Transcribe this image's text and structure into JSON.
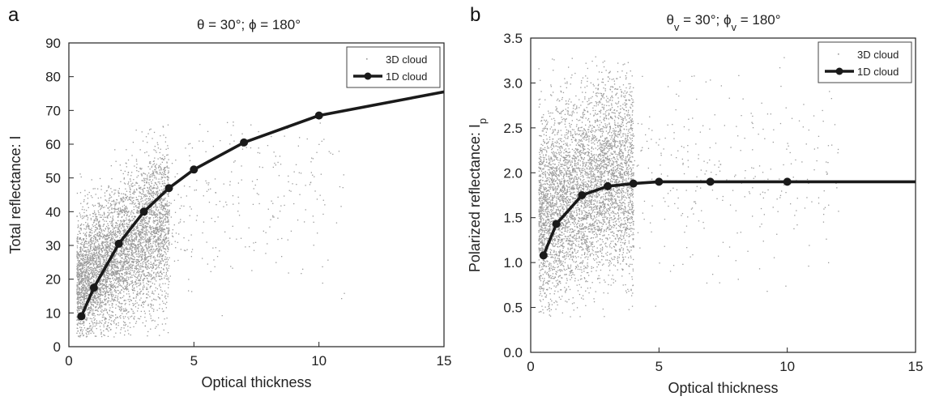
{
  "chart_data": [
    {
      "type": "scatter",
      "panel_label": "a",
      "title_parts": [
        {
          "t": "θ = 30°; ϕ = 180°"
        }
      ],
      "xlabel": "Optical thickness",
      "ylabel_parts": [
        {
          "t": "Total reflectance: I"
        }
      ],
      "xlim": [
        0,
        15
      ],
      "ylim": [
        0,
        90
      ],
      "xticks": [
        0,
        5,
        10,
        15
      ],
      "yticks": [
        0,
        10,
        20,
        30,
        40,
        50,
        60,
        70,
        80,
        90
      ],
      "grid": false,
      "legend": {
        "position": "top-right",
        "entries": [
          "3D cloud",
          "1D cloud"
        ]
      },
      "series": [
        {
          "name": "3D cloud",
          "kind": "scatter-cloud",
          "color": "#9a9a9a",
          "description_of_spread": {
            "x_range": [
              0.2,
              11
            ],
            "y_range": [
              3,
              67
            ],
            "dense_region_x": [
              0.3,
              4
            ],
            "dense_region_y": [
              8,
              50
            ]
          }
        },
        {
          "name": "1D cloud",
          "kind": "line-markers",
          "color": "#1a1a1a",
          "x": [
            0.5,
            1,
            2,
            3,
            4,
            5,
            7,
            10,
            15
          ],
          "y": [
            9,
            17.5,
            30.5,
            40,
            47,
            52.5,
            60.5,
            68.5,
            75.5
          ]
        }
      ]
    },
    {
      "type": "scatter",
      "panel_label": "b",
      "title_parts": [
        {
          "t": "θ"
        },
        {
          "t": "v",
          "sub": true
        },
        {
          "t": " = 30°; ϕ"
        },
        {
          "t": "v",
          "sub": true
        },
        {
          "t": " = 180°"
        }
      ],
      "xlabel": "Optical thickness",
      "ylabel_parts": [
        {
          "t": "Polarized reflectance: I"
        },
        {
          "t": "p",
          "sub": true
        }
      ],
      "xlim": [
        0,
        15
      ],
      "ylim": [
        0,
        3.5
      ],
      "xticks": [
        0,
        5,
        10,
        15
      ],
      "yticks": [
        0.0,
        0.5,
        1.0,
        1.5,
        2.0,
        2.5,
        3.0,
        3.5
      ],
      "ytick_format": "fixed1",
      "grid": false,
      "legend": {
        "position": "top-right",
        "entries": [
          "3D cloud",
          "1D cloud"
        ]
      },
      "series": [
        {
          "name": "3D cloud",
          "kind": "scatter-cloud",
          "color": "#9a9a9a",
          "description_of_spread": {
            "x_range": [
              0.2,
              12
            ],
            "y_range": [
              0.4,
              3.3
            ],
            "dense_region_x": [
              0.3,
              4
            ],
            "dense_region_y": [
              0.6,
              3.0
            ]
          }
        },
        {
          "name": "1D cloud",
          "kind": "line-markers",
          "color": "#1a1a1a",
          "x": [
            0.5,
            1,
            2,
            3,
            4,
            5,
            7,
            10,
            15
          ],
          "y": [
            1.08,
            1.43,
            1.75,
            1.85,
            1.88,
            1.9,
            1.9,
            1.9,
            1.9
          ]
        }
      ]
    }
  ]
}
